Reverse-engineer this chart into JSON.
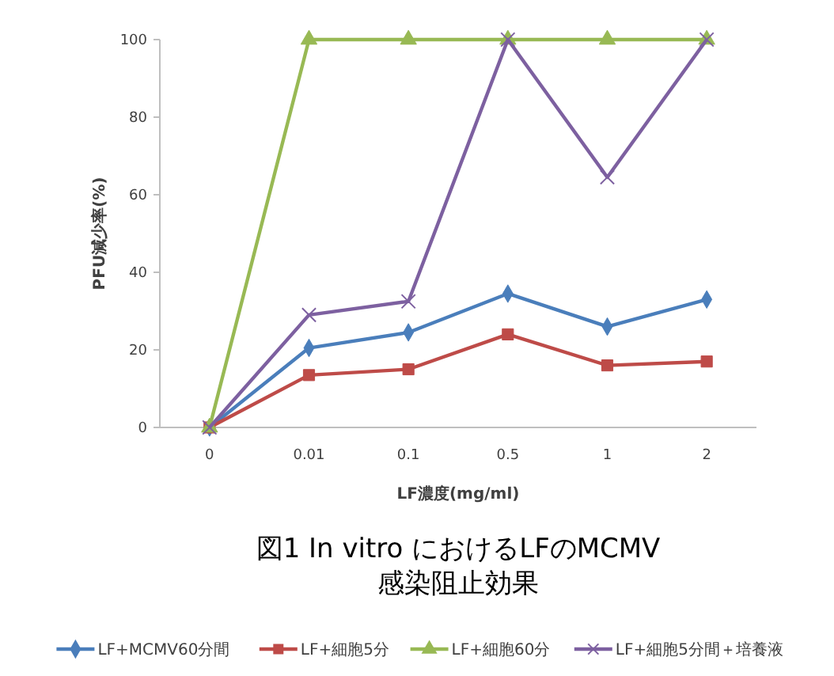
{
  "chart_data": {
    "type": "line",
    "title": "図1 In vitro におけるLFのMCMV 感染阻止効果",
    "xlabel": "LF濃度(mg/ml)",
    "ylabel": "PFU減少率(%)",
    "categories": [
      "0",
      "0.01",
      "0.1",
      "0.5",
      "1",
      "2"
    ],
    "ylim": [
      0,
      100
    ],
    "yticks": [
      0,
      20,
      40,
      60,
      80,
      100
    ],
    "grid": false,
    "legend": "bottom",
    "series": [
      {
        "name": "LF+MCMV60分間",
        "color": "#4a7ebb",
        "marker": "diamond",
        "values": [
          0,
          20.5,
          24.5,
          34.5,
          26,
          33
        ]
      },
      {
        "name": "LF+細胞5分",
        "color": "#be4b48",
        "marker": "square",
        "values": [
          0,
          13.5,
          15,
          24,
          16,
          17
        ]
      },
      {
        "name": "LF+細胞60分",
        "color": "#98b954",
        "marker": "triangle",
        "values": [
          0,
          100,
          100,
          100,
          100,
          100
        ]
      },
      {
        "name": "LF+細胞5分間＋培養液",
        "color": "#7d60a0",
        "marker": "cross",
        "values": [
          0,
          29,
          32.5,
          100,
          64.5,
          100
        ]
      }
    ]
  }
}
